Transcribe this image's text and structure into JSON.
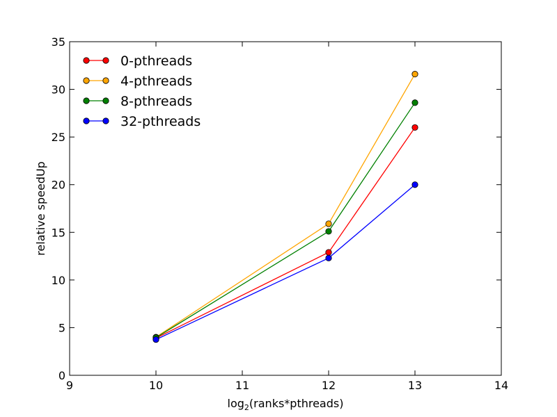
{
  "chart_data": {
    "type": "line",
    "title": "",
    "xlabel": "log(ranks*pthreads)",
    "xlabel_parts": {
      "base": "log",
      "sub": "2",
      "rest": "(ranks*pthreads)"
    },
    "ylabel": "relative speedUp",
    "xlim": [
      9,
      14
    ],
    "ylim": [
      0,
      35
    ],
    "xticks": [
      9,
      10,
      11,
      12,
      13,
      14
    ],
    "yticks": [
      0,
      5,
      10,
      15,
      20,
      25,
      30,
      35
    ],
    "grid": false,
    "legend_position": "top-left",
    "x": [
      10,
      12,
      13
    ],
    "series": [
      {
        "name": "0-pthreads",
        "color": "#ff0000",
        "values": [
          3.9,
          12.9,
          26.0
        ]
      },
      {
        "name": "4-pthreads",
        "color": "#ffa500",
        "values": [
          4.0,
          15.9,
          31.6
        ]
      },
      {
        "name": "8-pthreads",
        "color": "#008000",
        "values": [
          3.95,
          15.1,
          28.6
        ]
      },
      {
        "name": "32-pthreads",
        "color": "#0000ff",
        "values": [
          3.75,
          12.3,
          20.0
        ]
      }
    ]
  }
}
